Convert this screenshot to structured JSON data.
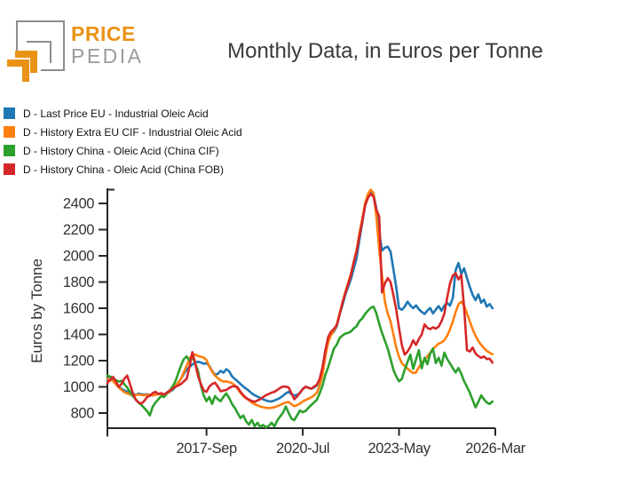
{
  "header": {
    "logo_top": "PRICE",
    "logo_bottom": "PEDIA"
  },
  "colors": {
    "logo_orange": "#ea9215",
    "logo_gray": "#8d8d8d",
    "logo_text_gray": "#9b9b9b",
    "axis": "#262626",
    "tick_text": "#333333",
    "title_text": "#3a3a3a"
  },
  "chart_data": {
    "type": "line",
    "title": "Monthly Data, in Euros per Tonne",
    "xlabel": "",
    "ylabel": "Euros by Tonne",
    "grid": false,
    "legend_position": "top-left",
    "x_start": "2014-10",
    "x_end": "2026-02",
    "x_total_months": 137,
    "x_tick_labels": [
      "2017-Sep",
      "2020-Jul",
      "2023-May",
      "2026-Mar"
    ],
    "x_tick_month_index": [
      35,
      69,
      103,
      137
    ],
    "y_ticks": [
      800,
      1000,
      1200,
      1400,
      1600,
      1800,
      2000,
      2200,
      2400
    ],
    "ylim": [
      640,
      2520
    ],
    "series": [
      {
        "name": "D - Last Price EU - Industrial Oleic Acid",
        "color": "#1f77b4",
        "values": [
          1050,
          1060,
          1065,
          1030,
          1000,
          985,
          972,
          963,
          952,
          945,
          940,
          948,
          944,
          940,
          944,
          938,
          934,
          940,
          948,
          944,
          940,
          950,
          962,
          976,
          1000,
          1030,
          1062,
          1100,
          1132,
          1152,
          1170,
          1185,
          1192,
          1186,
          1176,
          1180,
          1160,
          1120,
          1092,
          1100,
          1122,
          1108,
          1135,
          1118,
          1080,
          1060,
          1042,
          1022,
          1002,
          986,
          970,
          950,
          936,
          925,
          915,
          905,
          896,
          890,
          888,
          896,
          906,
          916,
          932,
          950,
          962,
          945,
          934,
          940,
          952,
          986,
          1000,
          994,
          986,
          996,
          1012,
          1052,
          1122,
          1252,
          1352,
          1400,
          1422,
          1462,
          1552,
          1622,
          1700,
          1762,
          1822,
          1902,
          1982,
          2122,
          2252,
          2382,
          2462,
          2492,
          2470,
          2360,
          2180,
          2040,
          2062,
          2070,
          2032,
          1897,
          1760,
          1601,
          1588,
          1612,
          1650,
          1622,
          1600,
          1622,
          1592,
          1572,
          1556,
          1582,
          1602,
          1560,
          1590,
          1616,
          1582,
          1620,
          1640,
          1620,
          1680,
          1890,
          1945,
          1862,
          1905,
          1830,
          1762,
          1702,
          1662,
          1706,
          1642,
          1666,
          1612,
          1632,
          1600
        ]
      },
      {
        "name": "D - History Extra EU CIF - Industrial Oleic Acid",
        "color": "#ff7f0e",
        "values": [
          1060,
          1052,
          1045,
          1020,
          996,
          976,
          960,
          950,
          942,
          936,
          938,
          942,
          938,
          935,
          940,
          938,
          935,
          940,
          946,
          942,
          940,
          950,
          965,
          985,
          1010,
          1032,
          1062,
          1112,
          1162,
          1212,
          1250,
          1246,
          1236,
          1230,
          1224,
          1205,
          1156,
          1116,
          1086,
          1066,
          1050,
          1040,
          1042,
          1035,
          1028,
          1010,
          985,
          955,
          930,
          912,
          898,
          880,
          868,
          858,
          850,
          845,
          840,
          838,
          840,
          845,
          852,
          862,
          872,
          880,
          885,
          868,
          852,
          860,
          872,
          888,
          900,
          910,
          920,
          935,
          955,
          1012,
          1092,
          1232,
          1342,
          1396,
          1430,
          1472,
          1562,
          1642,
          1722,
          1792,
          1862,
          1952,
          2042,
          2172,
          2282,
          2402,
          2472,
          2505,
          2480,
          2300,
          2050,
          1850,
          1650,
          1560,
          1500,
          1400,
          1300,
          1230,
          1180,
          1160,
          1140,
          1120,
          1105,
          1110,
          1150,
          1180,
          1210,
          1230,
          1260,
          1290,
          1310,
          1330,
          1340,
          1355,
          1390,
          1440,
          1500,
          1570,
          1630,
          1650,
          1620,
          1560,
          1500,
          1440,
          1390,
          1350,
          1320,
          1295,
          1275,
          1260,
          1248
        ]
      },
      {
        "name": "D - History China - Oleic Acid (China CIF)",
        "color": "#2ca02c",
        "values": [
          1085,
          1078,
          1070,
          1050,
          1040,
          1046,
          1020,
          995,
          960,
          930,
          905,
          880,
          862,
          838,
          815,
          782,
          848,
          880,
          905,
          930,
          922,
          950,
          972,
          1002,
          1042,
          1102,
          1162,
          1212,
          1232,
          1200,
          1230,
          1180,
          1120,
          1010,
          935,
          890,
          922,
          870,
          930,
          905,
          890,
          925,
          950,
          915,
          870,
          840,
          800,
          762,
          782,
          736,
          712,
          748,
          700,
          726,
          694,
          710,
          690,
          702,
          726,
          698,
          744,
          774,
          802,
          850,
          802,
          758,
          746,
          782,
          820,
          806,
          816,
          840,
          862,
          882,
          902,
          952,
          1012,
          1092,
          1152,
          1222,
          1292,
          1322,
          1372,
          1392,
          1406,
          1412,
          1422,
          1446,
          1462,
          1502,
          1522,
          1556,
          1582,
          1602,
          1612,
          1562,
          1482,
          1412,
          1352,
          1292,
          1212,
          1130,
          1080,
          1042,
          1060,
          1130,
          1190,
          1246,
          1137,
          1210,
          1280,
          1142,
          1222,
          1172,
          1252,
          1292,
          1182,
          1222,
          1162,
          1262,
          1212,
          1178,
          1142,
          1110,
          1144,
          1100,
          1042,
          1001,
          955,
          900,
          843,
          885,
          935,
          905,
          880,
          870,
          888
        ]
      },
      {
        "name": "D - History China - Oleic Acid (China FOB)",
        "color": "#d62728",
        "values": [
          1030,
          1055,
          1075,
          1040,
          1000,
          1022,
          1062,
          1086,
          1020,
          952,
          902,
          880,
          872,
          892,
          922,
          932,
          952,
          962,
          946,
          952,
          942,
          956,
          972,
          986,
          1000,
          1010,
          1022,
          1042,
          1062,
          1152,
          1265,
          1182,
          1082,
          1022,
          972,
          962,
          1002,
          1022,
          1032,
          1002,
          966,
          972,
          976,
          992,
          1002,
          1006,
          996,
          962,
          936,
          916,
          902,
          892,
          886,
          896,
          906,
          922,
          936,
          946,
          956,
          962,
          976,
          992,
          1002,
          1002,
          996,
          952,
          906,
          926,
          956,
          982,
          1002,
          992,
          986,
          1002,
          1016,
          1062,
          1152,
          1282,
          1382,
          1422,
          1442,
          1472,
          1552,
          1642,
          1712,
          1782,
          1852,
          1952,
          2032,
          2152,
          2262,
          2382,
          2442,
          2472,
          2452,
          2352,
          2300,
          1720,
          1790,
          1830,
          1800,
          1700,
          1590,
          1450,
          1320,
          1246,
          1270,
          1305,
          1355,
          1320,
          1365,
          1400,
          1477,
          1450,
          1440,
          1455,
          1445,
          1460,
          1500,
          1560,
          1680,
          1790,
          1850,
          1868,
          1820,
          1855,
          1600,
          1280,
          1270,
          1300,
          1255,
          1235,
          1222,
          1232,
          1212,
          1215,
          1185
        ]
      }
    ]
  }
}
